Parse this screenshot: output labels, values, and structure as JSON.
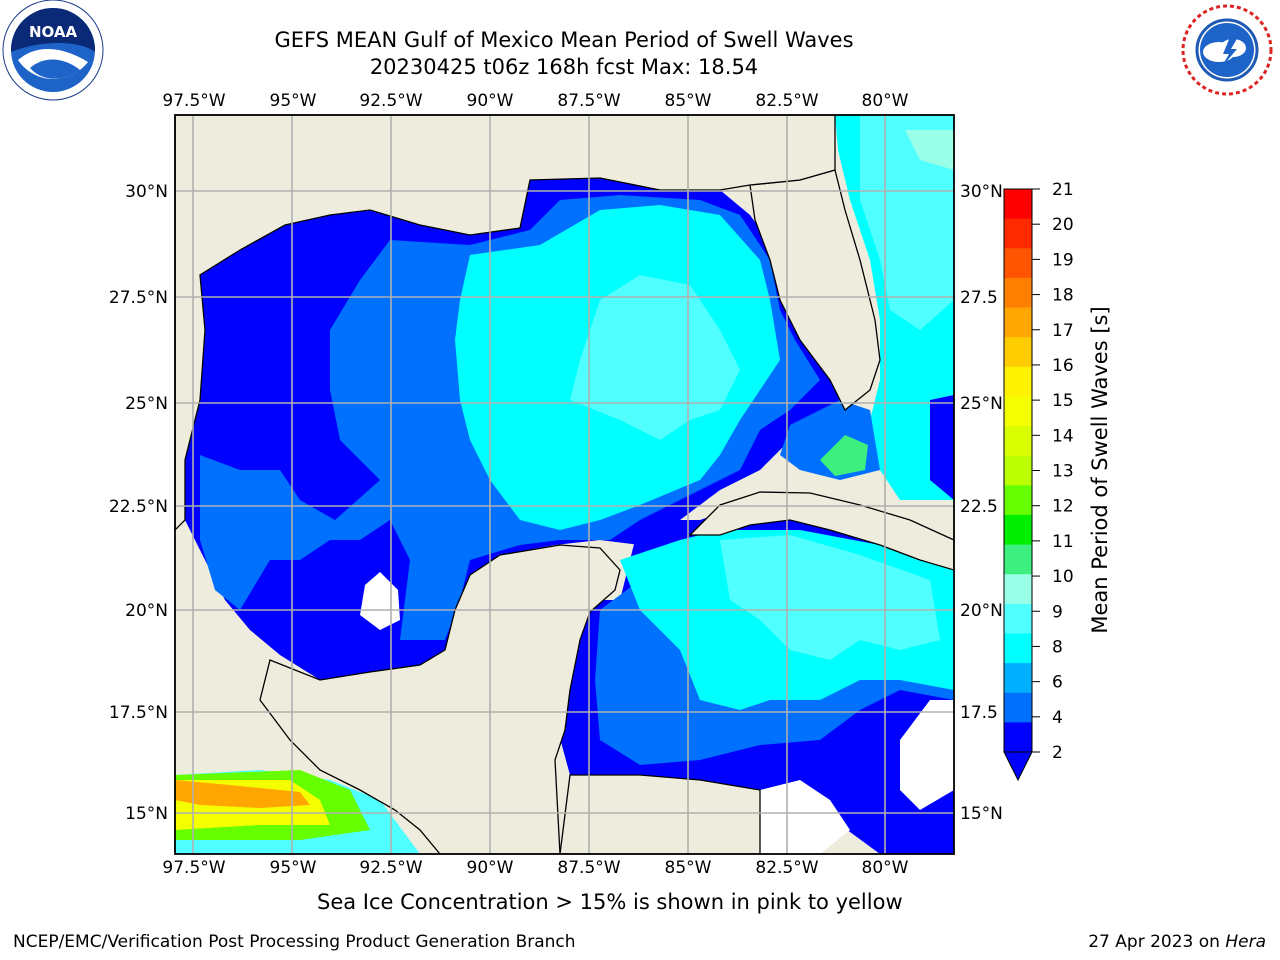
{
  "header": {
    "title_line1": "GEFS MEAN Gulf of Mexico Mean Period of Swell Waves",
    "title_line2": "20230425 t06z 168h fcst   Max: 18.54"
  },
  "logos": {
    "left": "NOAA",
    "left_ring": "NATIONAL OCEANIC AND ATMOSPHERIC ADMINISTRATION · U.S. DEPARTMENT OF COMMERCE",
    "right_ring": "NATIONAL WEATHER SERVICE"
  },
  "map": {
    "lon_labels": [
      "97.5°W",
      "95°W",
      "92.5°W",
      "90°W",
      "87.5°W",
      "85°W",
      "82.5°W",
      "80°W"
    ],
    "lat_labels_left": [
      "30°N",
      "27.5°N",
      "25°N",
      "22.5°N",
      "20°N",
      "17.5°N",
      "15°N"
    ],
    "lat_labels_right": [
      "30°N",
      "27.5",
      "25°N",
      "22.5",
      "20°N",
      "17.5",
      "15°N"
    ],
    "colors": {
      "land": "#eeecdc",
      "grid": "#b0b0b0"
    }
  },
  "colorbar": {
    "label": "Mean Period of Swell Waves [s]",
    "ticks": [
      "21",
      "20",
      "19",
      "18",
      "17",
      "16",
      "15",
      "14",
      "13",
      "12",
      "11",
      "10",
      "9",
      "8",
      "6",
      "4",
      "2"
    ],
    "bands": [
      "#ff0000",
      "#ff2a00",
      "#ff5500",
      "#ff7f00",
      "#ffa600",
      "#ffcc00",
      "#fff200",
      "#f4ff00",
      "#d9ff00",
      "#bbff00",
      "#66ff00",
      "#00ee00",
      "#3cef7e",
      "#99ffe6",
      "#50ffff",
      "#00ffff",
      "#00b0ff",
      "#0070ff",
      "#0000ff"
    ]
  },
  "footer": {
    "note": "Sea Ice Concentration > 15% is shown in pink to yellow",
    "credit": "NCEP/EMC/Verification Post Processing Product Generation Branch",
    "date": "27 Apr 2023 on",
    "machine": "Hera"
  }
}
